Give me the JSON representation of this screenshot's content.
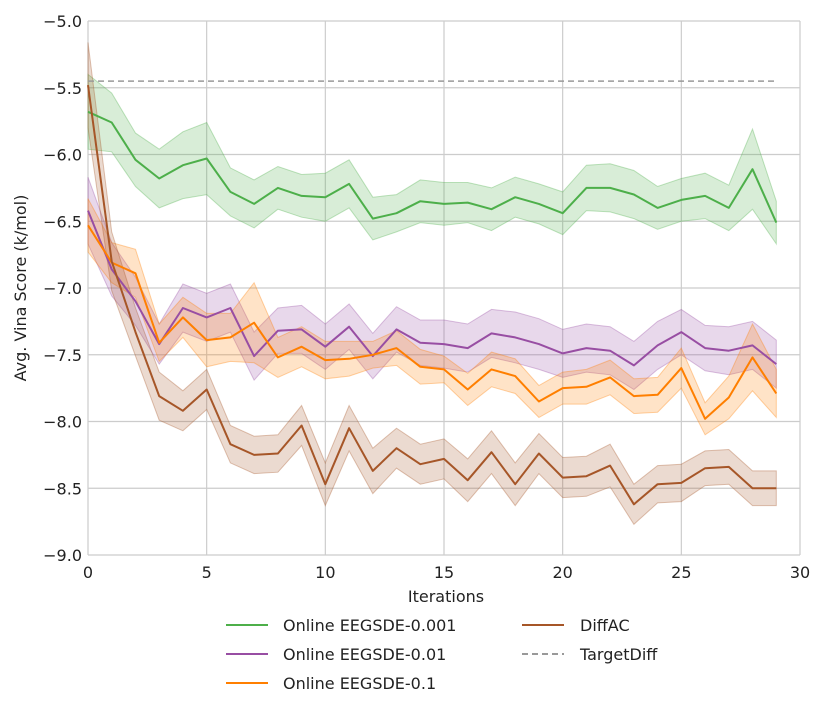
{
  "chart_data": {
    "type": "line",
    "title": "",
    "xlabel": "Iterations",
    "ylabel": "Avg. Vina Score (k/mol)",
    "xlim": [
      0,
      30
    ],
    "ylim": [
      -9.0,
      -5.0
    ],
    "xticks": [
      0,
      5,
      10,
      15,
      20,
      25,
      30
    ],
    "xtick_labels": [
      "0",
      "5",
      "10",
      "15",
      "20",
      "25",
      "30"
    ],
    "yticks": [
      -9.0,
      -8.5,
      -8.0,
      -7.5,
      -7.0,
      -6.5,
      -6.0,
      -5.5,
      -5.0
    ],
    "ytick_labels": [
      "−9.0",
      "−8.5",
      "−8.0",
      "−7.5",
      "−7.0",
      "−6.5",
      "−6.0",
      "−5.5",
      "−5.0"
    ],
    "grid": true,
    "legend_position": "bottom-center",
    "x": [
      0,
      1,
      2,
      3,
      4,
      5,
      6,
      7,
      8,
      9,
      10,
      11,
      12,
      13,
      14,
      15,
      16,
      17,
      18,
      19,
      20,
      21,
      22,
      23,
      24,
      25,
      26,
      27,
      28,
      29
    ],
    "series": [
      {
        "name": "Online EEGSDE-0.001",
        "color": "#4daf4a",
        "style": "solid",
        "values": [
          -5.68,
          -5.76,
          -6.04,
          -6.18,
          -6.08,
          -6.03,
          -6.28,
          -6.37,
          -6.25,
          -6.31,
          -6.32,
          -6.22,
          -6.48,
          -6.44,
          -6.35,
          -6.37,
          -6.36,
          -6.41,
          -6.32,
          -6.37,
          -6.44,
          -6.25,
          -6.25,
          -6.3,
          -6.4,
          -6.34,
          -6.31,
          -6.4,
          -6.11,
          -6.51
        ],
        "band_halfwidth": [
          0.28,
          0.22,
          0.2,
          0.22,
          0.25,
          0.27,
          0.18,
          0.18,
          0.16,
          0.16,
          0.18,
          0.18,
          0.16,
          0.14,
          0.16,
          0.16,
          0.15,
          0.16,
          0.15,
          0.15,
          0.16,
          0.17,
          0.18,
          0.18,
          0.16,
          0.16,
          0.17,
          0.17,
          0.3,
          0.16
        ]
      },
      {
        "name": "Online EEGSDE-0.01",
        "color": "#984ea3",
        "style": "solid",
        "values": [
          -6.42,
          -6.86,
          -7.1,
          -7.42,
          -7.15,
          -7.22,
          -7.15,
          -7.51,
          -7.32,
          -7.31,
          -7.44,
          -7.29,
          -7.51,
          -7.31,
          -7.41,
          -7.42,
          -7.45,
          -7.34,
          -7.37,
          -7.42,
          -7.49,
          -7.45,
          -7.47,
          -7.58,
          -7.43,
          -7.33,
          -7.45,
          -7.47,
          -7.43,
          -7.57
        ],
        "band_halfwidth": [
          0.25,
          0.2,
          0.18,
          0.15,
          0.18,
          0.18,
          0.18,
          0.18,
          0.17,
          0.18,
          0.17,
          0.17,
          0.17,
          0.17,
          0.17,
          0.18,
          0.18,
          0.18,
          0.19,
          0.19,
          0.18,
          0.18,
          0.18,
          0.18,
          0.18,
          0.17,
          0.17,
          0.18,
          0.18,
          0.18
        ]
      },
      {
        "name": "Online EEGSDE-0.1",
        "color": "#ff7f00",
        "style": "solid",
        "values": [
          -6.53,
          -6.81,
          -6.89,
          -7.41,
          -7.22,
          -7.39,
          -7.37,
          -7.26,
          -7.52,
          -7.44,
          -7.54,
          -7.53,
          -7.5,
          -7.45,
          -7.59,
          -7.61,
          -7.76,
          -7.61,
          -7.66,
          -7.85,
          -7.75,
          -7.74,
          -7.67,
          -7.81,
          -7.8,
          -7.6,
          -7.98,
          -7.82,
          -7.52,
          -7.79
        ],
        "band_halfwidth": [
          0.2,
          0.15,
          0.18,
          0.14,
          0.15,
          0.2,
          0.18,
          0.3,
          0.15,
          0.15,
          0.14,
          0.13,
          0.1,
          0.13,
          0.13,
          0.1,
          0.12,
          0.13,
          0.13,
          0.12,
          0.12,
          0.13,
          0.13,
          0.13,
          0.13,
          0.15,
          0.12,
          0.16,
          0.25,
          0.18
        ]
      },
      {
        "name": "DiffAC",
        "color": "#a65628",
        "style": "solid",
        "values": [
          -5.48,
          -6.8,
          -7.33,
          -7.81,
          -7.92,
          -7.76,
          -8.17,
          -8.25,
          -8.24,
          -8.03,
          -8.47,
          -8.05,
          -8.37,
          -8.2,
          -8.32,
          -8.28,
          -8.44,
          -8.23,
          -8.47,
          -8.24,
          -8.42,
          -8.41,
          -8.33,
          -8.62,
          -8.47,
          -8.46,
          -8.35,
          -8.34,
          -8.5,
          -8.5
        ],
        "band_halfwidth": [
          0.32,
          0.22,
          0.18,
          0.18,
          0.15,
          0.15,
          0.14,
          0.14,
          0.14,
          0.15,
          0.16,
          0.17,
          0.17,
          0.15,
          0.15,
          0.15,
          0.16,
          0.16,
          0.16,
          0.15,
          0.15,
          0.15,
          0.16,
          0.15,
          0.14,
          0.14,
          0.13,
          0.13,
          0.13,
          0.13
        ]
      },
      {
        "name": "TargetDiff",
        "color": "#999999",
        "style": "dashed",
        "values": [
          -5.45,
          -5.45,
          -5.45,
          -5.45,
          -5.45,
          -5.45,
          -5.45,
          -5.45,
          -5.45,
          -5.45,
          -5.45,
          -5.45,
          -5.45,
          -5.45,
          -5.45,
          -5.45,
          -5.45,
          -5.45,
          -5.45,
          -5.45,
          -5.45,
          -5.45,
          -5.45,
          -5.45,
          -5.45,
          -5.45,
          -5.45,
          -5.45,
          -5.45,
          -5.45
        ]
      }
    ]
  }
}
